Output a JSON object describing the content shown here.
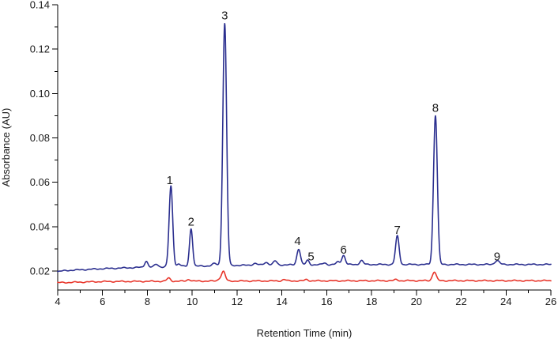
{
  "chart_data": {
    "type": "line",
    "title": "",
    "xlabel": "Retention Time (min)",
    "ylabel": "Absorbance (AU)",
    "xlim": [
      4,
      26
    ],
    "ylim": [
      0.0115,
      0.14
    ],
    "x_ticks": [
      4,
      6,
      8,
      10,
      12,
      14,
      16,
      18,
      20,
      22,
      24,
      26
    ],
    "x_minor_step": 1,
    "y_ticks": [
      0.02,
      0.04,
      0.06,
      0.08,
      0.1,
      0.12,
      0.14
    ],
    "y_tick_labels": [
      "0.02",
      "0.04",
      "0.06",
      "0.08",
      "0.10",
      "0.12",
      "0.14"
    ],
    "y_minor_step": 0.01,
    "grid": false,
    "legend": "none",
    "series": [
      {
        "color": "#2b2f8f",
        "baseline": [
          [
            4,
            0.0198
          ],
          [
            4.4,
            0.0203
          ],
          [
            6,
            0.0211
          ],
          [
            8,
            0.0218
          ],
          [
            10,
            0.0222
          ],
          [
            12,
            0.0226
          ],
          [
            14,
            0.0228
          ],
          [
            16,
            0.0229
          ],
          [
            18,
            0.023
          ],
          [
            22,
            0.023
          ],
          [
            26,
            0.023
          ]
        ],
        "peaks": [
          {
            "x": 7.95,
            "h": 0.0028,
            "w": 0.07
          },
          {
            "x": 8.4,
            "h": 0.0012,
            "w": 0.08
          },
          {
            "x": 9.05,
            "h": 0.0362,
            "w": 0.08
          },
          {
            "x": 9.4,
            "h": 0.0012,
            "w": 0.08
          },
          {
            "x": 9.95,
            "h": 0.017,
            "w": 0.07
          },
          {
            "x": 11.0,
            "h": 0.001,
            "w": 0.1
          },
          {
            "x": 11.45,
            "h": 0.109,
            "w": 0.085
          },
          {
            "x": 12.8,
            "h": 0.0008,
            "w": 0.1
          },
          {
            "x": 13.3,
            "h": 0.0012,
            "w": 0.1
          },
          {
            "x": 13.7,
            "h": 0.0018,
            "w": 0.08
          },
          {
            "x": 14.75,
            "h": 0.0072,
            "w": 0.08
          },
          {
            "x": 15.15,
            "h": 0.002,
            "w": 0.07
          },
          {
            "x": 15.9,
            "h": 0.0008,
            "w": 0.08
          },
          {
            "x": 16.5,
            "h": 0.0012,
            "w": 0.08
          },
          {
            "x": 16.75,
            "h": 0.0042,
            "w": 0.08
          },
          {
            "x": 17.55,
            "h": 0.0018,
            "w": 0.08
          },
          {
            "x": 19.15,
            "h": 0.0128,
            "w": 0.08
          },
          {
            "x": 20.85,
            "h": 0.0672,
            "w": 0.085
          },
          {
            "x": 23.6,
            "h": 0.0018,
            "w": 0.1
          }
        ]
      },
      {
        "color": "#e8352a",
        "baseline": [
          [
            4,
            0.0148
          ],
          [
            6,
            0.0153
          ],
          [
            10,
            0.0155
          ],
          [
            14,
            0.0156
          ],
          [
            20,
            0.0157
          ],
          [
            26,
            0.0157
          ]
        ],
        "peaks": [
          {
            "x": 8.95,
            "h": 0.0014,
            "w": 0.08
          },
          {
            "x": 9.85,
            "h": 0.0008,
            "w": 0.08
          },
          {
            "x": 11.25,
            "h": 0.0012,
            "w": 0.09
          },
          {
            "x": 11.4,
            "h": 0.004,
            "w": 0.08
          },
          {
            "x": 14.1,
            "h": 0.0006,
            "w": 0.08
          },
          {
            "x": 15.1,
            "h": 0.0006,
            "w": 0.08
          },
          {
            "x": 19.1,
            "h": 0.0005,
            "w": 0.08
          },
          {
            "x": 20.8,
            "h": 0.004,
            "w": 0.085
          }
        ]
      }
    ],
    "annotations": [
      {
        "text": "1",
        "x": 9.0,
        "y": 0.0592
      },
      {
        "text": "2",
        "x": 9.95,
        "y": 0.0405
      },
      {
        "text": "3",
        "x": 11.45,
        "y": 0.1335
      },
      {
        "text": "4",
        "x": 14.7,
        "y": 0.0318
      },
      {
        "text": "5",
        "x": 15.3,
        "y": 0.0248
      },
      {
        "text": "6",
        "x": 16.75,
        "y": 0.0278
      },
      {
        "text": "7",
        "x": 19.15,
        "y": 0.0368
      },
      {
        "text": "8",
        "x": 20.85,
        "y": 0.0918
      },
      {
        "text": "9",
        "x": 23.6,
        "y": 0.0248
      }
    ]
  }
}
